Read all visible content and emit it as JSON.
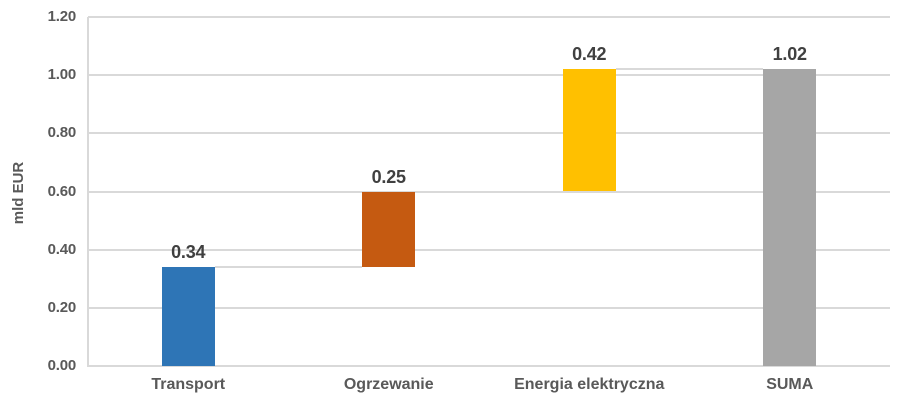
{
  "chart_data": {
    "type": "bar",
    "subtype": "waterfall",
    "title": "",
    "xlabel": "",
    "ylabel": "mld EUR",
    "ylim": [
      0,
      1.2
    ],
    "ytick_step": 0.2,
    "ytick_labels": [
      "0.00",
      "0.20",
      "0.40",
      "0.60",
      "0.80",
      "1.00",
      "1.20"
    ],
    "grid": "horizontal",
    "legend": "none",
    "categories": [
      "Transport",
      "Ogrzewanie",
      "Energia elektryczna",
      "SUMA"
    ],
    "bars": [
      {
        "category": "Transport",
        "label": "0.34",
        "value": 0.34,
        "from": 0,
        "to": 0.34,
        "color": "#2E75B6"
      },
      {
        "category": "Ogrzewanie",
        "label": "0.25",
        "value": 0.25,
        "from": 0.34,
        "to": 0.6,
        "color": "#C55A11"
      },
      {
        "category": "Energia elektryczna",
        "label": "0.42",
        "value": 0.42,
        "from": 0.6,
        "to": 1.02,
        "color": "#FFC000"
      },
      {
        "category": "SUMA",
        "label": "1.02",
        "value": 1.02,
        "from": 0,
        "to": 1.02,
        "color": "#A6A6A6"
      }
    ],
    "colors": {
      "gridline": "#D9D9D9",
      "axis_line": "#D9D9D9",
      "connector": "#D9D9D9",
      "tick_text": "#595959",
      "category_text": "#595959",
      "bar_label_text": "#404040",
      "axis_title_text": "#595959",
      "background": "#FFFFFF"
    }
  }
}
